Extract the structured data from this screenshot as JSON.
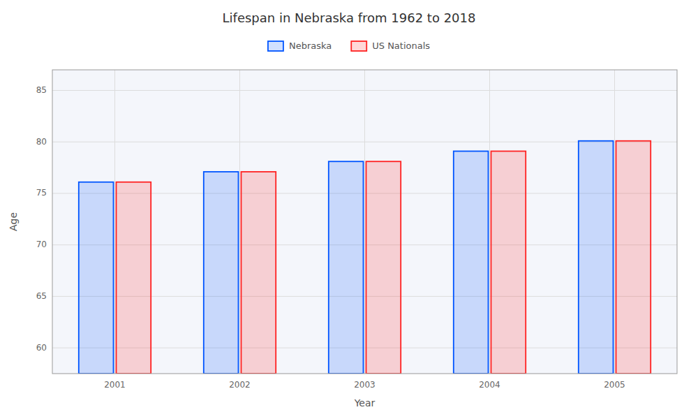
{
  "chart_data": {
    "type": "bar",
    "title": "Lifespan in Nebraska from 1962 to 2018",
    "x_label": "Year",
    "y_label": "Age",
    "categories": [
      "2001",
      "2002",
      "2003",
      "2004",
      "2005"
    ],
    "series": [
      {
        "name": "Nebraska",
        "color": "#0055ff",
        "values": [
          76.1,
          77.1,
          78.1,
          79.1,
          80.1
        ]
      },
      {
        "name": "US Nationals",
        "color": "#ff2222",
        "values": [
          76.1,
          77.1,
          78.1,
          79.1,
          80.1
        ]
      }
    ],
    "ylim": [
      57.5,
      87
    ],
    "yticks": [
      60,
      65,
      70,
      75,
      80,
      85
    ],
    "grid": true,
    "legend": "top"
  }
}
